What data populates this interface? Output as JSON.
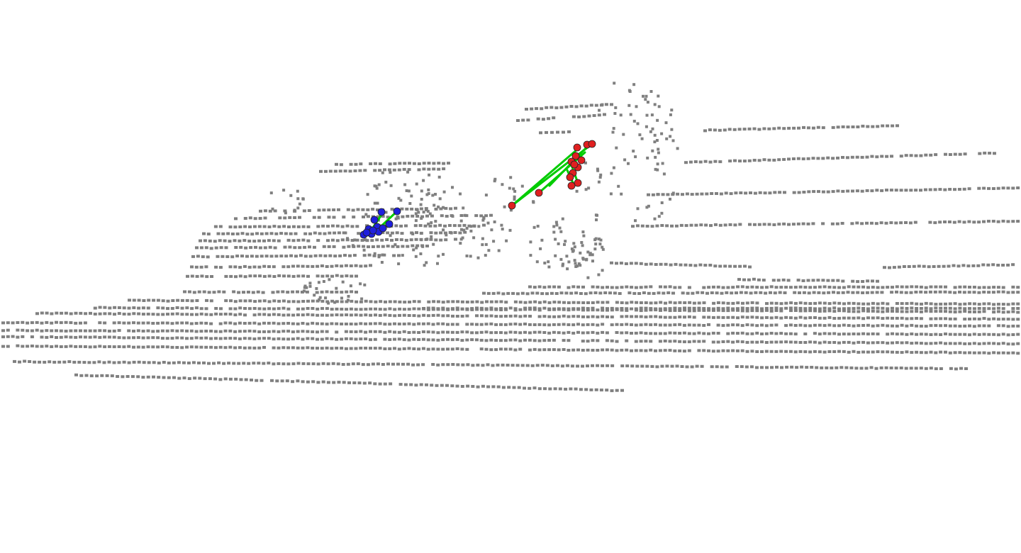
{
  "scene": {
    "background_color": "#ffffff",
    "point_cloud_color": "#808080",
    "skeleton_line_color": "#00cc00",
    "keypoint_colors": {
      "source": "#1f1fdd",
      "target": "#e02020"
    },
    "legend": [],
    "labels": []
  }
}
